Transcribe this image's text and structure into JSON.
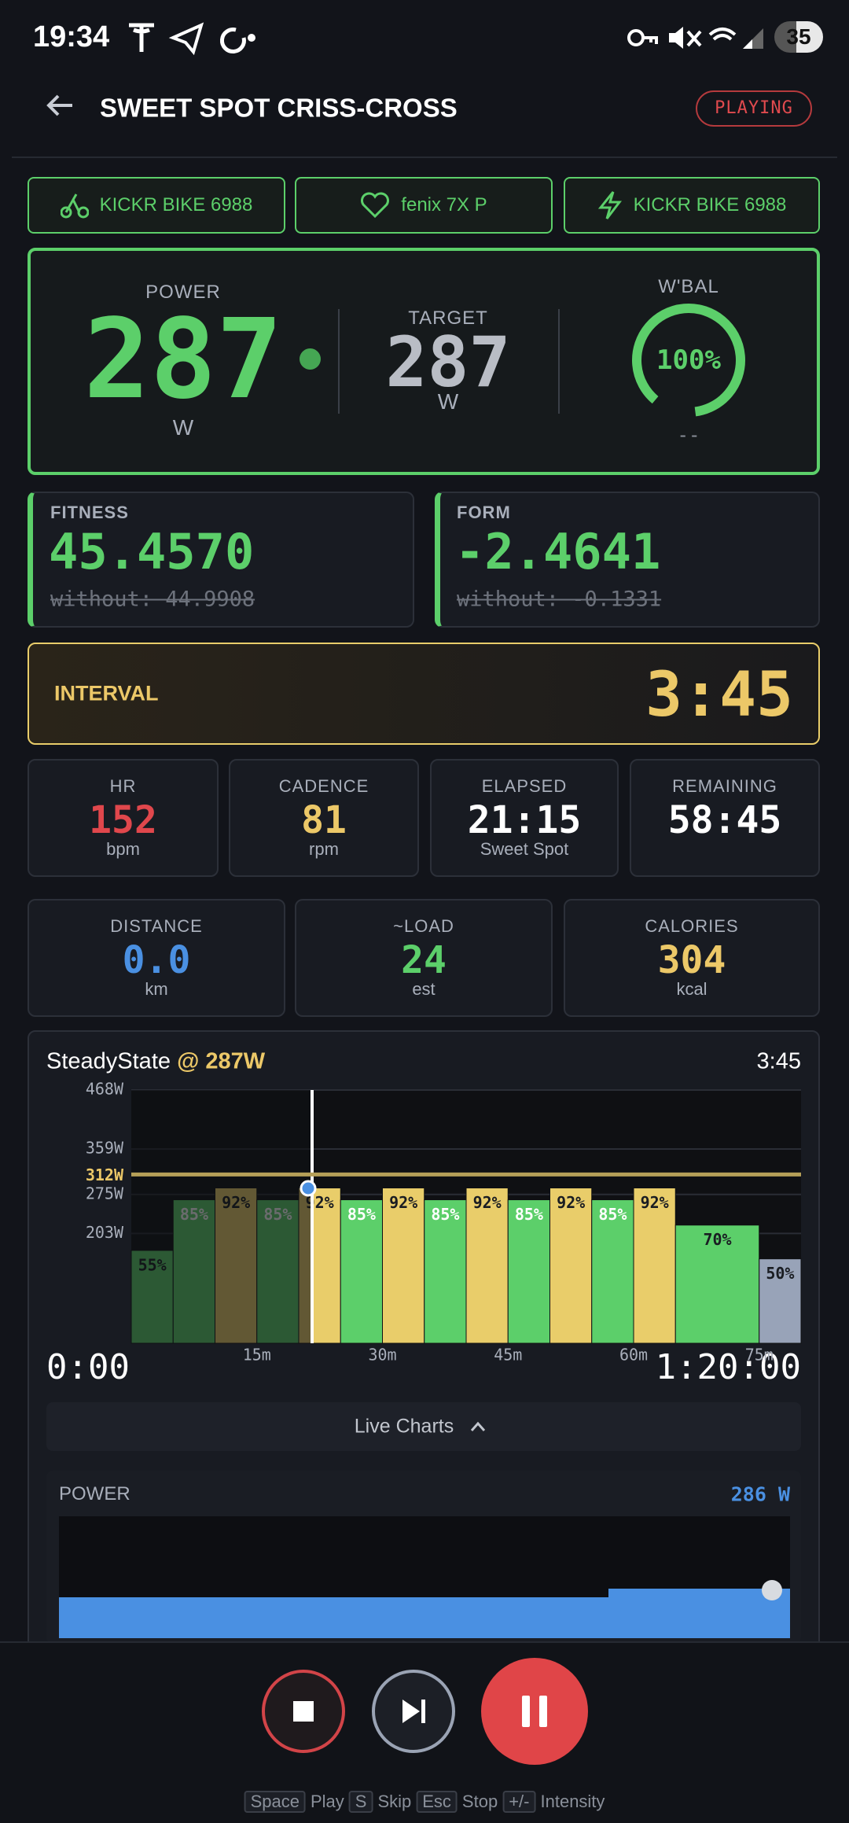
{
  "status_bar": {
    "time": "19:34",
    "battery": "35"
  },
  "header": {
    "title": "SWEET SPOT CRISS-CROSS",
    "status": "PLAYING"
  },
  "devices": [
    "KICKR BIKE 6988",
    "fenix 7X P",
    "KICKR BIKE 6988"
  ],
  "power": {
    "label": "POWER",
    "value": "287",
    "unit": "W",
    "target_label": "TARGET",
    "target_value": "287",
    "target_unit": "W",
    "wbal_label": "W'BAL",
    "wbal_value": "100%",
    "wbal_sub": "--"
  },
  "fitness": {
    "label": "FITNESS",
    "value": "45.4570",
    "without": "without: 44.9908"
  },
  "form": {
    "label": "FORM",
    "value": "-2.4641",
    "without": "without: -0.1331"
  },
  "interval": {
    "label": "INTERVAL",
    "time": "3:45"
  },
  "stats": [
    {
      "label": "HR",
      "value": "152",
      "unit": "bpm",
      "color": "#e0474c"
    },
    {
      "label": "CADENCE",
      "value": "81",
      "unit": "rpm",
      "color": "#ecc868"
    },
    {
      "label": "ELAPSED",
      "value": "21:15",
      "unit": "Sweet Spot",
      "color": "#ffffff"
    },
    {
      "label": "REMAINING",
      "value": "58:45",
      "unit": null,
      "color": "#ffffff"
    }
  ],
  "stats2": [
    {
      "label": "DISTANCE",
      "value": "0.0",
      "unit": "km",
      "color": "#4a90e2"
    },
    {
      "label": "~LOAD",
      "value": "24",
      "unit": "est",
      "color": "#5ccf6a"
    },
    {
      "label": "CALORIES",
      "value": "304",
      "unit": "kcal",
      "color": "#ecc868"
    }
  ],
  "workout": {
    "name": "SteadyState",
    "target": "@ 287W",
    "time_left": "3:45",
    "start": "0:00",
    "end": "1:20:00",
    "xlim": [
      0,
      80
    ],
    "xticks": [
      {
        "value": 15,
        "label": "15m"
      },
      {
        "value": 30,
        "label": "30m"
      },
      {
        "value": 45,
        "label": "45m"
      },
      {
        "value": 60,
        "label": "60m"
      },
      {
        "value": 75,
        "label": "75m"
      }
    ],
    "ylim": [
      0,
      468
    ],
    "yticks": [
      {
        "value": 468,
        "label": "468W"
      },
      {
        "value": 359,
        "label": "359W"
      },
      {
        "value": 275,
        "label": "275W"
      },
      {
        "value": 203,
        "label": "203W"
      }
    ],
    "ftp": {
      "value": 312,
      "label": "312W"
    },
    "segments": [
      {
        "minutes": 5,
        "value": 55,
        "label": "55%",
        "color": "#5ccf6a",
        "label_color": "#1a1d22"
      },
      {
        "minutes": 5,
        "value": 85,
        "label": "85%",
        "color": "#5ccf6a",
        "label_color": "#ffffff"
      },
      {
        "minutes": 5,
        "value": 92,
        "label": "92%",
        "color": "#e9cd6a",
        "label_color": "#1a1d22"
      },
      {
        "minutes": 5,
        "value": 85,
        "label": "85%",
        "color": "#5ccf6a",
        "label_color": "#ffffff"
      },
      {
        "minutes": 5,
        "value": 92,
        "label": "92%",
        "color": "#e9cd6a",
        "label_color": "#1a1d22"
      },
      {
        "minutes": 5,
        "value": 85,
        "label": "85%",
        "color": "#5ccf6a",
        "label_color": "#ffffff"
      },
      {
        "minutes": 5,
        "value": 92,
        "label": "92%",
        "color": "#e9cd6a",
        "label_color": "#1a1d22"
      },
      {
        "minutes": 5,
        "value": 85,
        "label": "85%",
        "color": "#5ccf6a",
        "label_color": "#ffffff"
      },
      {
        "minutes": 5,
        "value": 92,
        "label": "92%",
        "color": "#e9cd6a",
        "label_color": "#1a1d22"
      },
      {
        "minutes": 5,
        "value": 85,
        "label": "85%",
        "color": "#5ccf6a",
        "label_color": "#ffffff"
      },
      {
        "minutes": 5,
        "value": 92,
        "label": "92%",
        "color": "#e9cd6a",
        "label_color": "#1a1d22"
      },
      {
        "minutes": 5,
        "value": 85,
        "label": "85%",
        "color": "#5ccf6a",
        "label_color": "#ffffff"
      },
      {
        "minutes": 5,
        "value": 92,
        "label": "92%",
        "color": "#e9cd6a",
        "label_color": "#1a1d22"
      },
      {
        "minutes": 10,
        "value": 70,
        "label": "70%",
        "color": "#5ccf6a",
        "label_color": "#1a1d22"
      },
      {
        "minutes": 5,
        "value": 50,
        "label": "50%",
        "color": "#98a3b8",
        "label_color": "#1a1d22"
      }
    ]
  },
  "live_charts": "Live Charts",
  "live_power": {
    "label": "POWER",
    "value": "286 W"
  },
  "shortcuts": [
    {
      "key": "Space",
      "action": "Play"
    },
    {
      "key": "S",
      "action": "Skip"
    },
    {
      "key": "Esc",
      "action": "Stop"
    },
    {
      "key": "+/-",
      "action": "Intensity"
    }
  ]
}
